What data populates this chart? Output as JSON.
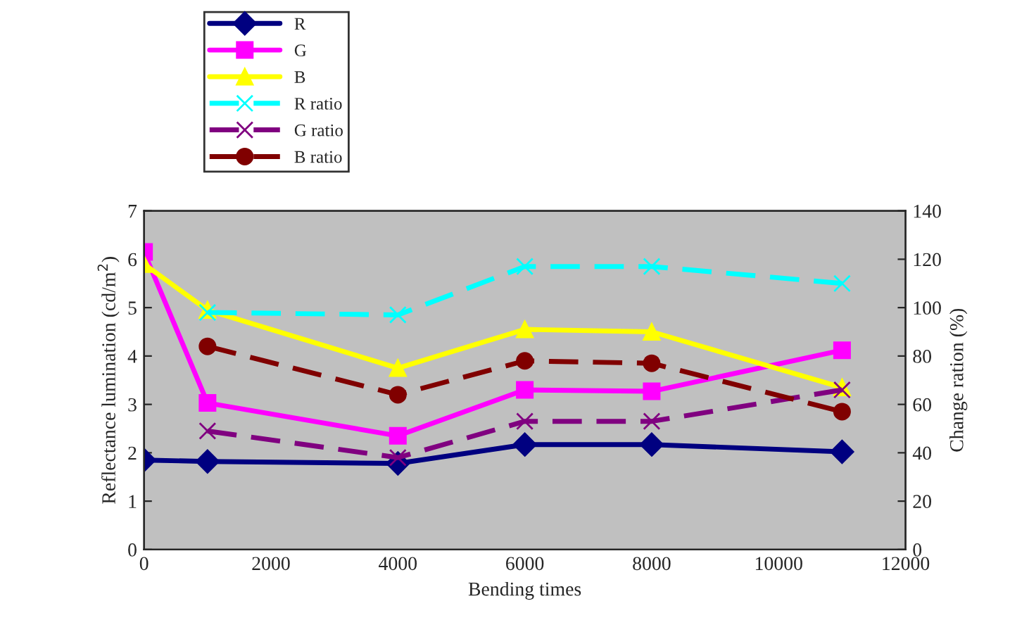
{
  "chart_data": {
    "type": "line",
    "xlabel": "Bending times",
    "ylabel": "Reflectance lumination (cd/m$^{2}$)",
    "y2label": "Change ration (%)",
    "xlim": [
      0,
      12000
    ],
    "xticks": [
      0,
      2000,
      4000,
      6000,
      8000,
      10000,
      12000
    ],
    "ylim": [
      0,
      7
    ],
    "yticks": [
      0,
      1,
      2,
      3,
      4,
      5,
      6,
      7
    ],
    "y2lim": [
      0,
      140
    ],
    "y2ticks": [
      0,
      20,
      40,
      60,
      80,
      100,
      120,
      140
    ],
    "grid": false,
    "legend": "top left",
    "series": [
      {
        "name": "R",
        "color": "#000080",
        "marker": "diamond",
        "line_style": "solid",
        "x": [
          0,
          1000,
          4000,
          6000,
          8000,
          11000
        ],
        "values": [
          1.85,
          1.82,
          1.78,
          2.17,
          2.17,
          2.02
        ]
      },
      {
        "name": "G",
        "color": "#ff00ff",
        "marker": "square",
        "line_style": "solid",
        "x": [
          0,
          1000,
          4000,
          6000,
          8000,
          11000
        ],
        "values": [
          6.15,
          3.03,
          2.35,
          3.3,
          3.27,
          4.12
        ]
      },
      {
        "name": "B",
        "color": "#ffff00",
        "marker": "triangle",
        "line_style": "solid",
        "x": [
          0,
          1000,
          4000,
          6000,
          8000,
          11000
        ],
        "values": [
          5.9,
          4.95,
          3.75,
          4.55,
          4.5,
          3.35
        ]
      },
      {
        "name": "R ratio",
        "color": "#00ffff",
        "marker": "cross",
        "line_style": "dashed",
        "axis": "y2",
        "x": [
          1000,
          4000,
          6000,
          8000,
          11000
        ],
        "values": [
          98,
          97,
          117,
          117,
          110
        ]
      },
      {
        "name": "G ratio",
        "color": "#800080",
        "marker": "cross",
        "line_style": "dashed",
        "axis": "y2",
        "x": [
          1000,
          4000,
          6000,
          8000,
          11000
        ],
        "values": [
          49,
          38,
          53,
          53,
          66
        ]
      },
      {
        "name": "B ratio",
        "color": "#800000",
        "marker": "circle",
        "line_style": "dashed",
        "axis": "y2",
        "x": [
          1000,
          4000,
          6000,
          8000,
          11000
        ],
        "values": [
          84,
          64,
          78,
          77,
          57
        ]
      }
    ]
  }
}
